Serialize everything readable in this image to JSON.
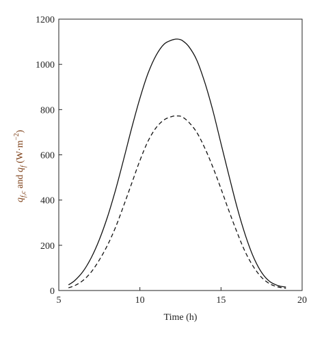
{
  "chart_data": {
    "type": "line",
    "title": "",
    "xlabel": "Time (h)",
    "ylabel": {
      "q1_sym": "q",
      "q1_sub": "f,c",
      "and": " and ",
      "q2_sym": "q",
      "q2_sub": "f",
      "unit_open": " (W·m",
      "unit_exp": "−2",
      "unit_close": ")",
      "color": "#7a3b12"
    },
    "xlim": [
      5,
      20
    ],
    "ylim": [
      0,
      1200
    ],
    "xticks": [
      5,
      10,
      15,
      20
    ],
    "yticks": [
      0,
      200,
      400,
      600,
      800,
      1000,
      1200
    ],
    "grid": false,
    "legend": "none",
    "series": [
      {
        "style": "solid",
        "color": "#111111",
        "x": [
          5.6,
          6.0,
          6.5,
          7.0,
          7.5,
          8.0,
          8.5,
          9.0,
          9.5,
          10.0,
          10.5,
          11.0,
          11.5,
          12.0,
          12.3,
          12.6,
          13.0,
          13.5,
          14.0,
          14.5,
          15.0,
          15.5,
          16.0,
          16.5,
          17.0,
          17.5,
          18.0,
          18.5,
          19.0
        ],
        "y": [
          25,
          45,
          85,
          145,
          225,
          325,
          445,
          580,
          720,
          850,
          960,
          1040,
          1090,
          1108,
          1112,
          1106,
          1080,
          1020,
          920,
          795,
          650,
          505,
          365,
          245,
          148,
          80,
          40,
          22,
          15
        ]
      },
      {
        "style": "dashed",
        "color": "#111111",
        "x": [
          5.6,
          6.0,
          6.5,
          7.0,
          7.5,
          8.0,
          8.5,
          9.0,
          9.5,
          10.0,
          10.5,
          11.0,
          11.5,
          12.0,
          12.3,
          12.6,
          13.0,
          13.5,
          14.0,
          14.5,
          15.0,
          15.5,
          16.0,
          16.5,
          17.0,
          17.5,
          18.0,
          18.5,
          19.0
        ],
        "y": [
          12,
          22,
          45,
          82,
          135,
          200,
          280,
          375,
          475,
          575,
          660,
          720,
          755,
          770,
          772,
          768,
          745,
          700,
          630,
          545,
          450,
          350,
          255,
          170,
          105,
          58,
          30,
          16,
          10
        ]
      }
    ]
  }
}
